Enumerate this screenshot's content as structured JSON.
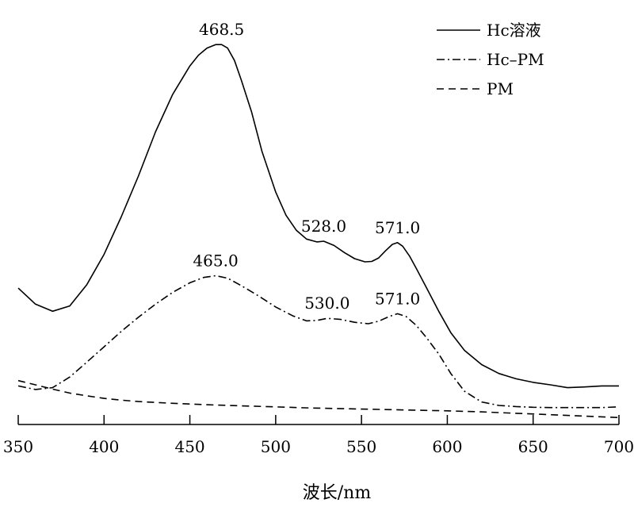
{
  "chart_data": {
    "type": "line",
    "title": "",
    "xlabel": "波长/nm",
    "ylabel": "",
    "xlim": [
      350,
      700
    ],
    "ylim": [
      0,
      1.08
    ],
    "x_ticks": [
      350,
      400,
      450,
      500,
      550,
      600,
      650,
      700
    ],
    "y_axis_visible": false,
    "grid": false,
    "legend": "top-right",
    "series": [
      {
        "name": "Hc溶液",
        "style": "solid",
        "x": [
          350,
          360,
          370,
          380,
          390,
          400,
          410,
          420,
          430,
          440,
          450,
          455,
          460,
          465,
          468.5,
          472,
          476,
          480,
          486,
          492,
          500,
          506,
          512,
          518,
          524,
          528,
          534,
          540,
          546,
          552,
          556,
          560,
          564,
          568,
          571,
          574,
          578,
          582,
          588,
          595,
          602,
          610,
          620,
          630,
          640,
          650,
          660,
          670,
          680,
          690,
          700
        ],
        "y": [
          0.35,
          0.305,
          0.285,
          0.3,
          0.36,
          0.445,
          0.55,
          0.665,
          0.79,
          0.895,
          0.975,
          1.005,
          1.025,
          1.035,
          1.035,
          1.025,
          0.99,
          0.935,
          0.845,
          0.735,
          0.62,
          0.555,
          0.513,
          0.488,
          0.48,
          0.482,
          0.47,
          0.45,
          0.433,
          0.424,
          0.425,
          0.435,
          0.455,
          0.473,
          0.478,
          0.468,
          0.44,
          0.405,
          0.35,
          0.285,
          0.225,
          0.175,
          0.135,
          0.11,
          0.095,
          0.085,
          0.078,
          0.07,
          0.072,
          0.075,
          0.075
        ]
      },
      {
        "name": "Hc–PM",
        "style": "dash-dot",
        "x": [
          350,
          360,
          370,
          380,
          390,
          400,
          410,
          420,
          430,
          440,
          450,
          458,
          465,
          472,
          480,
          490,
          500,
          510,
          518,
          524,
          530,
          538,
          546,
          554,
          560,
          566,
          571,
          576,
          582,
          588,
          595,
          602,
          610,
          620,
          630,
          640,
          650,
          660,
          670,
          680,
          690,
          700
        ],
        "y": [
          0.075,
          0.065,
          0.07,
          0.1,
          0.142,
          0.185,
          0.228,
          0.268,
          0.305,
          0.338,
          0.365,
          0.38,
          0.385,
          0.378,
          0.357,
          0.328,
          0.297,
          0.272,
          0.258,
          0.259,
          0.265,
          0.262,
          0.254,
          0.25,
          0.257,
          0.27,
          0.278,
          0.27,
          0.245,
          0.21,
          0.165,
          0.11,
          0.06,
          0.03,
          0.02,
          0.017,
          0.015,
          0.014,
          0.014,
          0.014,
          0.014,
          0.016
        ]
      },
      {
        "name": "PM",
        "style": "dashed",
        "x": [
          350,
          360,
          370,
          380,
          390,
          400,
          410,
          420,
          440,
          460,
          480,
          500,
          520,
          540,
          560,
          580,
          600,
          620,
          640,
          660,
          680,
          700
        ],
        "y": [
          0.09,
          0.078,
          0.066,
          0.055,
          0.047,
          0.04,
          0.035,
          0.031,
          0.026,
          0.022,
          0.019,
          0.016,
          0.013,
          0.011,
          0.009,
          0.007,
          0.005,
          0.002,
          -0.002,
          -0.006,
          -0.01,
          -0.014
        ]
      }
    ],
    "annotations": [
      {
        "label": "468.5",
        "x": 468.5,
        "y": 1.035
      },
      {
        "label": "528.0",
        "x": 528.0,
        "y": 0.482
      },
      {
        "label": "571.0",
        "x": 571.0,
        "y": 0.478
      },
      {
        "label": "465.0",
        "x": 465.0,
        "y": 0.385
      },
      {
        "label": "530.0",
        "x": 530.0,
        "y": 0.265
      },
      {
        "label": "571.0",
        "x": 571.0,
        "y": 0.278
      }
    ]
  }
}
